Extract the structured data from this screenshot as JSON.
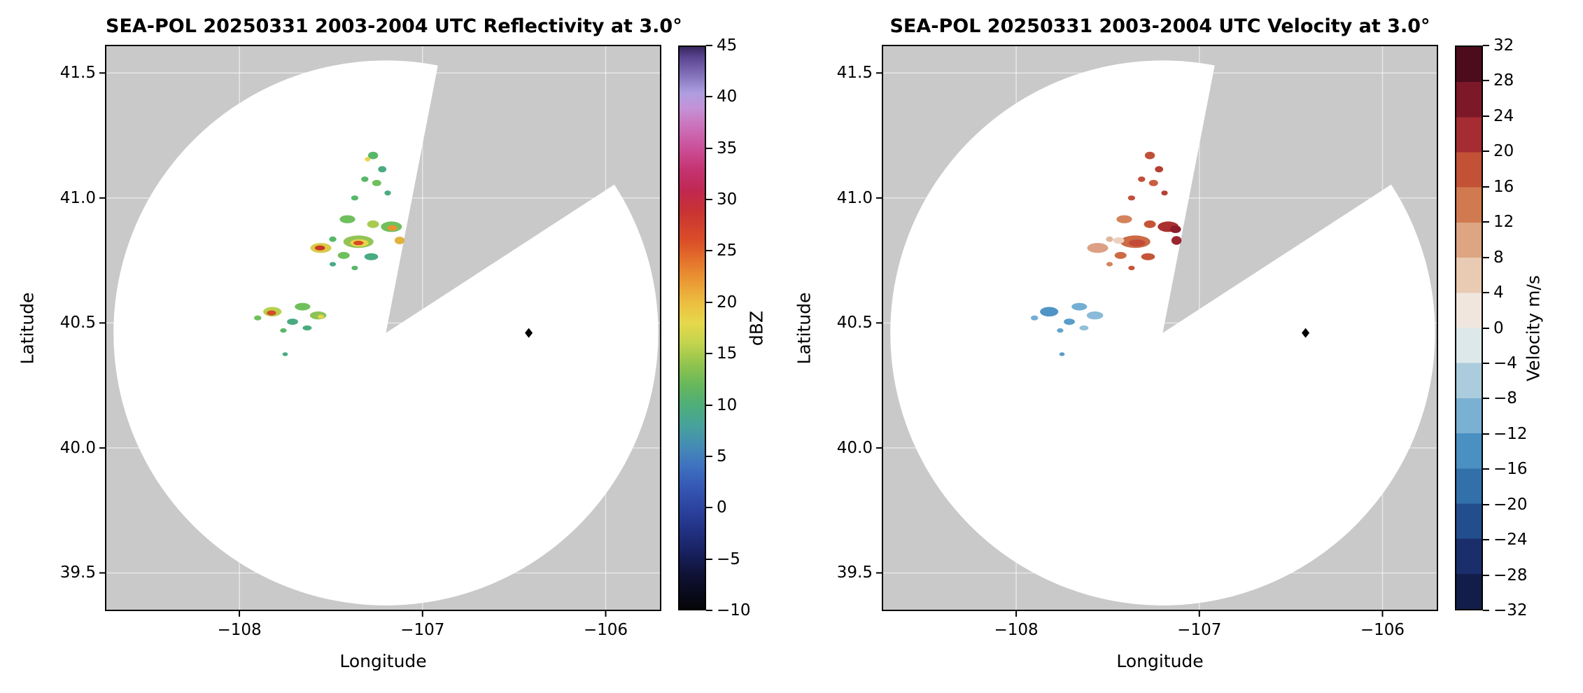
{
  "style": {
    "mask_gray": "#c9c9c9",
    "background": "#ffffff",
    "grid_color": "#ffffff"
  },
  "chart_data": [
    {
      "type": "heatmap",
      "kind": "radar-ppi",
      "title": "SEA-POL 20250331 2003-2004 UTC Reflectivity at 3.0°",
      "xlabel": "Longitude",
      "ylabel": "Latitude",
      "xlim": [
        -108.73,
        -105.7
      ],
      "ylim": [
        39.35,
        41.61
      ],
      "xticks": {
        "values": [
          -108,
          -107,
          -106
        ],
        "labels": [
          "−108",
          "−107",
          "−106"
        ]
      },
      "yticks": {
        "values": [
          39.5,
          40.0,
          40.5,
          41.0,
          41.5
        ],
        "labels": [
          "39.5",
          "40.0",
          "40.5",
          "41.0",
          "41.5"
        ]
      },
      "grid": true,
      "radar": {
        "center_lon": -107.2,
        "center_lat": 40.46,
        "radius_deg_lat": 1.09,
        "missing_sector_azimuth_deg": [
          11,
          57
        ]
      },
      "site_marker": {
        "lon": -106.42,
        "lat": 40.46,
        "shape": "diamond",
        "color": "#000000"
      },
      "colorbar": {
        "label": "dBZ",
        "min": -10,
        "max": 45,
        "type": "gradient",
        "tick_values": [
          -10,
          -5,
          0,
          5,
          10,
          15,
          20,
          25,
          30,
          35,
          40,
          45
        ],
        "tick_labels": [
          "−10",
          "−5",
          "0",
          "5",
          "10",
          "15",
          "20",
          "25",
          "30",
          "35",
          "40",
          "45"
        ],
        "stops": [
          [
            -10,
            "#050508"
          ],
          [
            -7,
            "#0e1030"
          ],
          [
            -4,
            "#1a2468"
          ],
          [
            -1,
            "#283c96"
          ],
          [
            2,
            "#3558b4"
          ],
          [
            4,
            "#3f72c0"
          ],
          [
            6,
            "#458cb4"
          ],
          [
            8,
            "#47a29a"
          ],
          [
            10,
            "#4fae78"
          ],
          [
            12,
            "#68b85a"
          ],
          [
            14,
            "#92c44e"
          ],
          [
            16,
            "#c2d44e"
          ],
          [
            18,
            "#e6d84c"
          ],
          [
            20,
            "#ecbe40"
          ],
          [
            22,
            "#ea9a34"
          ],
          [
            24,
            "#e4742c"
          ],
          [
            26,
            "#da4e28"
          ],
          [
            29,
            "#c83234"
          ],
          [
            31,
            "#c02852"
          ],
          [
            33,
            "#c43472"
          ],
          [
            35,
            "#ca4e96"
          ],
          [
            37,
            "#cc6eb8"
          ],
          [
            39,
            "#c492d6"
          ],
          [
            40.5,
            "#ae9ee0"
          ],
          [
            42,
            "#8878c0"
          ],
          [
            44,
            "#5a4490"
          ],
          [
            45,
            "#38265e"
          ]
        ]
      },
      "echoes": [
        [
          -107.27,
          41.17,
          0.055,
          0.03,
          "#58b86a"
        ],
        [
          -107.3,
          41.155,
          0.03,
          0.018,
          "#e8d44a"
        ],
        [
          -107.22,
          41.115,
          0.045,
          0.025,
          "#49ab82"
        ],
        [
          -107.315,
          41.075,
          0.04,
          0.022,
          "#58b86a"
        ],
        [
          -107.25,
          41.06,
          0.05,
          0.025,
          "#6fc05c"
        ],
        [
          -107.19,
          41.02,
          0.035,
          0.02,
          "#49ab82"
        ],
        [
          -107.37,
          41.0,
          0.04,
          0.02,
          "#58b86a"
        ],
        [
          -107.41,
          40.915,
          0.085,
          0.032,
          "#6fc05c"
        ],
        [
          -107.27,
          40.895,
          0.065,
          0.03,
          "#a8cc50"
        ],
        [
          -107.17,
          40.885,
          0.115,
          0.042,
          "#6fc05c"
        ],
        [
          -107.165,
          40.88,
          0.055,
          0.022,
          "#e89232"
        ],
        [
          -107.49,
          40.835,
          0.04,
          0.022,
          "#58b86a"
        ],
        [
          -107.35,
          40.825,
          0.165,
          0.05,
          "#93c455"
        ],
        [
          -107.345,
          40.82,
          0.1,
          0.03,
          "#e8d44a"
        ],
        [
          -107.35,
          40.82,
          0.055,
          0.018,
          "#d84a28"
        ],
        [
          -107.125,
          40.83,
          0.055,
          0.03,
          "#e0b23e"
        ],
        [
          -107.555,
          40.8,
          0.115,
          0.04,
          "#d8cc48"
        ],
        [
          -107.56,
          40.8,
          0.055,
          0.02,
          "#cc3524"
        ],
        [
          -107.43,
          40.77,
          0.065,
          0.028,
          "#6fc05c"
        ],
        [
          -107.28,
          40.765,
          0.075,
          0.028,
          "#49ab82"
        ],
        [
          -107.49,
          40.735,
          0.035,
          0.018,
          "#49ab82"
        ],
        [
          -107.37,
          40.72,
          0.035,
          0.018,
          "#58b86a"
        ],
        [
          -107.655,
          40.565,
          0.085,
          0.03,
          "#6fc05c"
        ],
        [
          -107.82,
          40.545,
          0.1,
          0.038,
          "#b8d04e"
        ],
        [
          -107.825,
          40.54,
          0.05,
          0.02,
          "#d84a28"
        ],
        [
          -107.57,
          40.53,
          0.09,
          0.032,
          "#8cc356"
        ],
        [
          -107.555,
          40.525,
          0.035,
          0.016,
          "#e8d44a"
        ],
        [
          -107.71,
          40.505,
          0.06,
          0.025,
          "#49ab82"
        ],
        [
          -107.9,
          40.52,
          0.04,
          0.02,
          "#6fc05c"
        ],
        [
          -107.63,
          40.48,
          0.05,
          0.02,
          "#49ab82"
        ],
        [
          -107.76,
          40.47,
          0.035,
          0.018,
          "#58b86a"
        ],
        [
          -107.75,
          40.375,
          0.03,
          0.015,
          "#49ab82"
        ]
      ]
    },
    {
      "type": "heatmap",
      "kind": "radar-ppi",
      "title": "SEA-POL 20250331 2003-2004 UTC Velocity at 3.0°",
      "xlabel": "Longitude",
      "ylabel": "Latitude",
      "xlim": [
        -108.73,
        -105.7
      ],
      "ylim": [
        39.35,
        41.61
      ],
      "xticks": {
        "values": [
          -108,
          -107,
          -106
        ],
        "labels": [
          "−108",
          "−107",
          "−106"
        ]
      },
      "yticks": {
        "values": [
          39.5,
          40.0,
          40.5,
          41.0,
          41.5
        ],
        "labels": [
          "39.5",
          "40.0",
          "40.5",
          "41.0",
          "41.5"
        ]
      },
      "grid": true,
      "radar": {
        "center_lon": -107.2,
        "center_lat": 40.46,
        "radius_deg_lat": 1.09,
        "missing_sector_azimuth_deg": [
          11,
          57
        ]
      },
      "site_marker": {
        "lon": -106.42,
        "lat": 40.46,
        "shape": "diamond",
        "color": "#000000"
      },
      "colorbar": {
        "label": "Velocity m/s",
        "min": -32,
        "max": 32,
        "type": "bands",
        "band_size": 4,
        "tick_values": [
          -32,
          -28,
          -24,
          -20,
          -16,
          -12,
          -8,
          -4,
          0,
          4,
          8,
          12,
          16,
          20,
          24,
          28,
          32
        ],
        "tick_labels": [
          "−32",
          "−28",
          "−24",
          "−20",
          "−16",
          "−12",
          "−8",
          "−4",
          "0",
          "4",
          "8",
          "12",
          "16",
          "20",
          "24",
          "28",
          "32"
        ],
        "bands": [
          [
            -32,
            "#121d4a"
          ],
          [
            -28,
            "#1a2e6c"
          ],
          [
            -24,
            "#234e8e"
          ],
          [
            -20,
            "#3270aa"
          ],
          [
            -16,
            "#4a90c2"
          ],
          [
            -12,
            "#7ab0d2"
          ],
          [
            -8,
            "#abccdc"
          ],
          [
            -4,
            "#dce8ea"
          ],
          [
            0,
            "#f0e6de"
          ],
          [
            4,
            "#e9cab2"
          ],
          [
            8,
            "#dda582"
          ],
          [
            12,
            "#d17a50"
          ],
          [
            16,
            "#c25136"
          ],
          [
            20,
            "#a42c32"
          ],
          [
            24,
            "#7c1828"
          ],
          [
            28,
            "#4c0c1c"
          ]
        ]
      },
      "echoes": [
        [
          -107.27,
          41.17,
          0.055,
          0.03,
          "#c0503a"
        ],
        [
          -107.22,
          41.115,
          0.045,
          0.025,
          "#b44034"
        ],
        [
          -107.315,
          41.075,
          0.04,
          0.022,
          "#c0503a"
        ],
        [
          -107.25,
          41.06,
          0.05,
          0.025,
          "#ca5c40"
        ],
        [
          -107.19,
          41.02,
          0.035,
          0.02,
          "#b44034"
        ],
        [
          -107.37,
          41.0,
          0.04,
          0.02,
          "#c0503a"
        ],
        [
          -107.41,
          40.915,
          0.085,
          0.032,
          "#d4835c"
        ],
        [
          -107.27,
          40.895,
          0.065,
          0.03,
          "#c65438"
        ],
        [
          -107.17,
          40.885,
          0.115,
          0.042,
          "#aa3030"
        ],
        [
          -107.13,
          40.875,
          0.06,
          0.03,
          "#8c1c2a"
        ],
        [
          -107.49,
          40.835,
          0.04,
          0.022,
          "#e0b69c"
        ],
        [
          -107.35,
          40.825,
          0.165,
          0.05,
          "#cc6a46"
        ],
        [
          -107.44,
          40.83,
          0.06,
          0.026,
          "#ecd0c0"
        ],
        [
          -107.34,
          40.82,
          0.09,
          0.028,
          "#c24a36"
        ],
        [
          -107.125,
          40.83,
          0.055,
          0.035,
          "#9a2430"
        ],
        [
          -107.555,
          40.8,
          0.115,
          0.04,
          "#dca084"
        ],
        [
          -107.43,
          40.77,
          0.065,
          0.028,
          "#cc6a46"
        ],
        [
          -107.28,
          40.765,
          0.075,
          0.028,
          "#c65438"
        ],
        [
          -107.49,
          40.735,
          0.035,
          0.018,
          "#d4835c"
        ],
        [
          -107.37,
          40.72,
          0.035,
          0.018,
          "#c65438"
        ],
        [
          -107.655,
          40.565,
          0.085,
          0.03,
          "#74aed2"
        ],
        [
          -107.82,
          40.545,
          0.1,
          0.038,
          "#4f94c4"
        ],
        [
          -107.57,
          40.53,
          0.09,
          0.032,
          "#8abbd8"
        ],
        [
          -107.71,
          40.505,
          0.06,
          0.025,
          "#5b9dca"
        ],
        [
          -107.9,
          40.52,
          0.04,
          0.02,
          "#74aed2"
        ],
        [
          -107.63,
          40.48,
          0.05,
          0.02,
          "#93c0da"
        ],
        [
          -107.76,
          40.47,
          0.035,
          0.018,
          "#64a4cc"
        ],
        [
          -107.75,
          40.375,
          0.03,
          0.015,
          "#5b9dca"
        ]
      ]
    }
  ]
}
